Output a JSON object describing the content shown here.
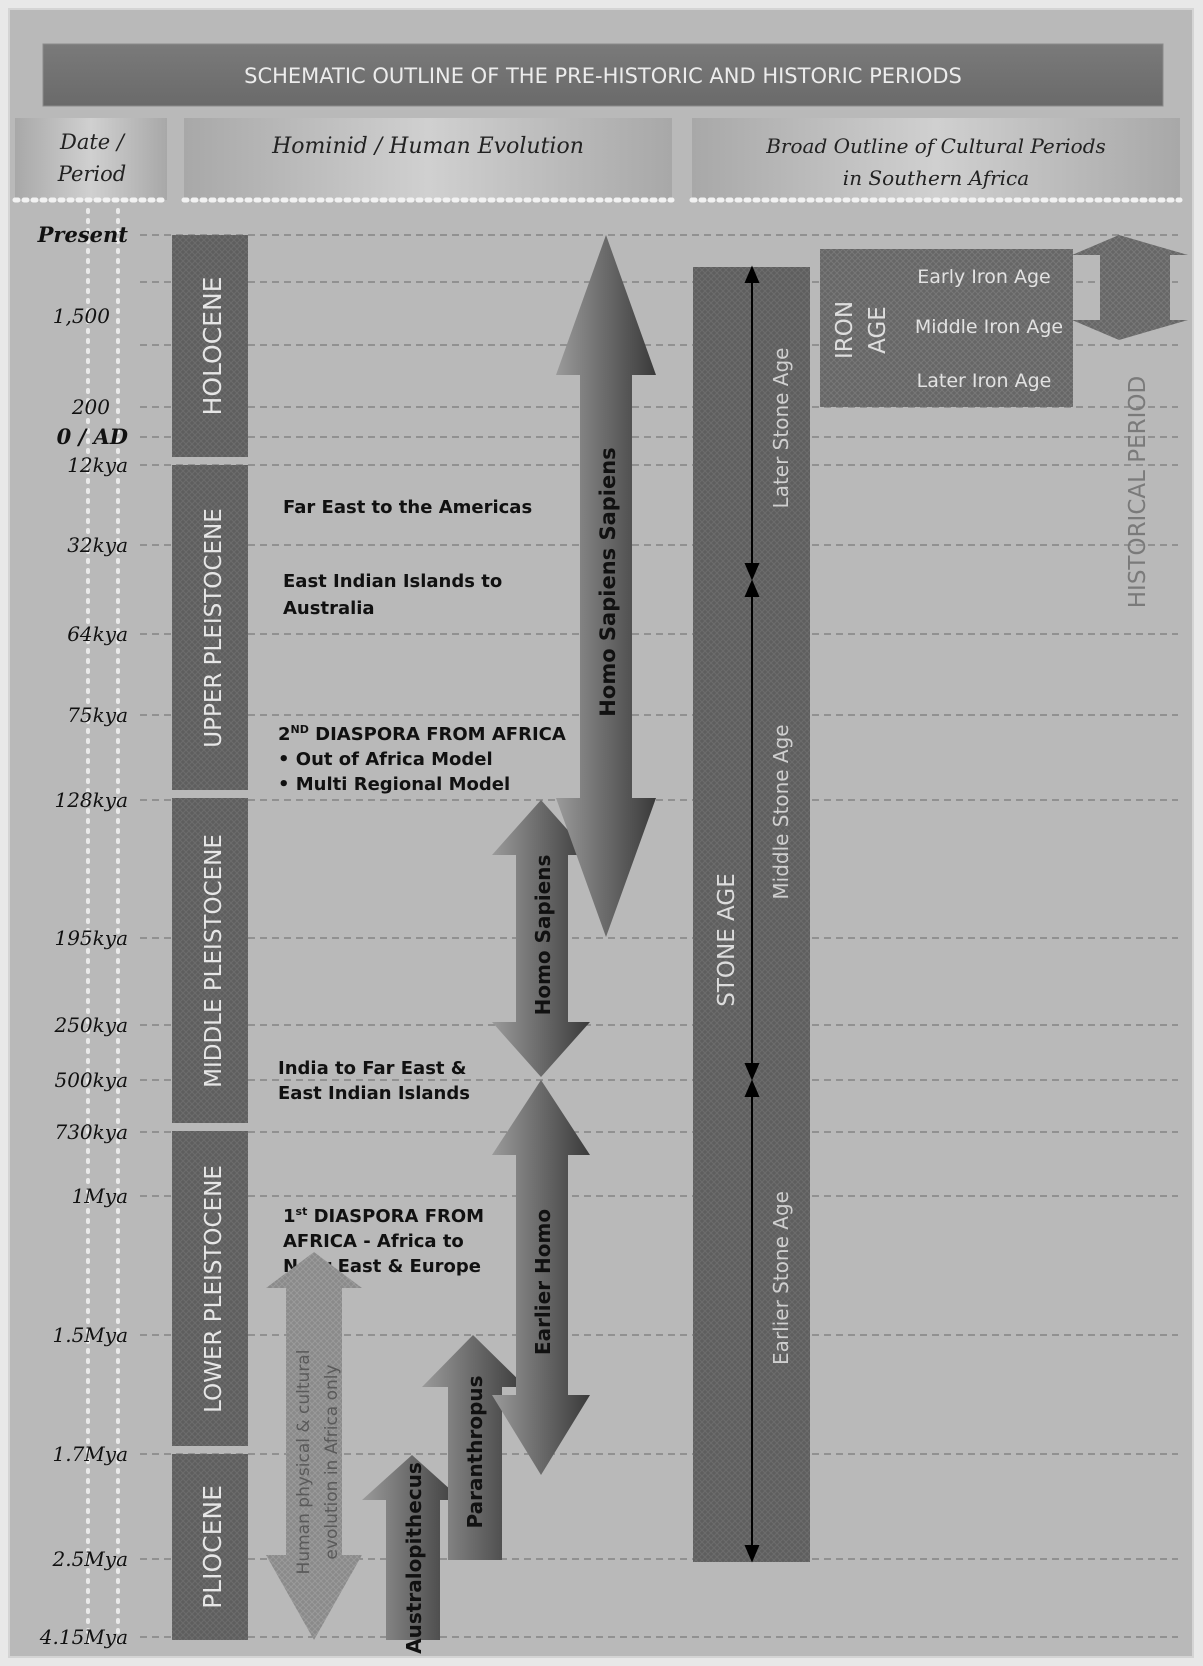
{
  "title": "SCHEMATIC OUTLINE OF THE PRE-HISTORIC AND HISTORIC PERIODS",
  "headers": {
    "date_line1": "Date /",
    "date_line2": "Period",
    "hominid": "Hominid / Human Evolution",
    "cultural_line1": "Broad Outline of Cultural Periods",
    "cultural_line2": "in Southern Africa"
  },
  "time_labels": [
    "Present",
    "1,500",
    "200",
    "0 / AD",
    "12kya",
    "32kya",
    "64kya",
    "75kya",
    "128kya",
    "195kya",
    "250kya",
    "500kya",
    "730kya",
    "1Mya",
    "1.5Mya",
    "1.7Mya",
    "2.5Mya",
    "4.15Mya"
  ],
  "epochs": [
    "HOLOCENE",
    "UPPER PLEISTOCENE",
    "MIDDLE PLEISTOCENE",
    "LOWER PLEISTOCENE",
    "PLIOCENE"
  ],
  "migrations": {
    "far_east": "Far East to the Americas",
    "east_indian_1": "East Indian Islands to",
    "east_indian_2": "Australia",
    "diaspora2_pre": "2",
    "diaspora2_sup": "ND",
    "diaspora2_rest": " DIASPORA FROM AFRICA",
    "out_of_africa": "• Out of Africa Model",
    "multi_regional": "• Multi Regional Model",
    "india_1": "India to Far East &",
    "india_2": "East Indian Islands",
    "diaspora1_pre": "1",
    "diaspora1_sup": "st",
    "diaspora1_rest": " DIASPORA FROM",
    "diaspora1_line2": "AFRICA - Africa to",
    "diaspora1_line3": "Near East & Europe"
  },
  "hominids": {
    "homo_sapiens_sapiens": "Homo Sapiens Sapiens",
    "homo_sapiens": "Homo Sapiens",
    "earlier_homo": "Earlier Homo",
    "paranthropus": "Paranthropus",
    "australopithecus": "Australopithecus",
    "africa_only_1": "Human physical & cultural",
    "africa_only_2": "evolution in Africa only"
  },
  "cultural": {
    "stone_age": "STONE AGE",
    "later_stone_age": "Later Stone Age",
    "middle_stone_age": "Middle Stone Age",
    "earlier_stone_age": "Earlier Stone Age",
    "iron_age_1": "IRON",
    "iron_age_2": "AGE",
    "early_iron_age": "Early Iron Age",
    "middle_iron_age": "Middle Iron Age",
    "later_iron_age": "Later Iron Age",
    "historical_period": "HISTORICAL PERIOD"
  }
}
